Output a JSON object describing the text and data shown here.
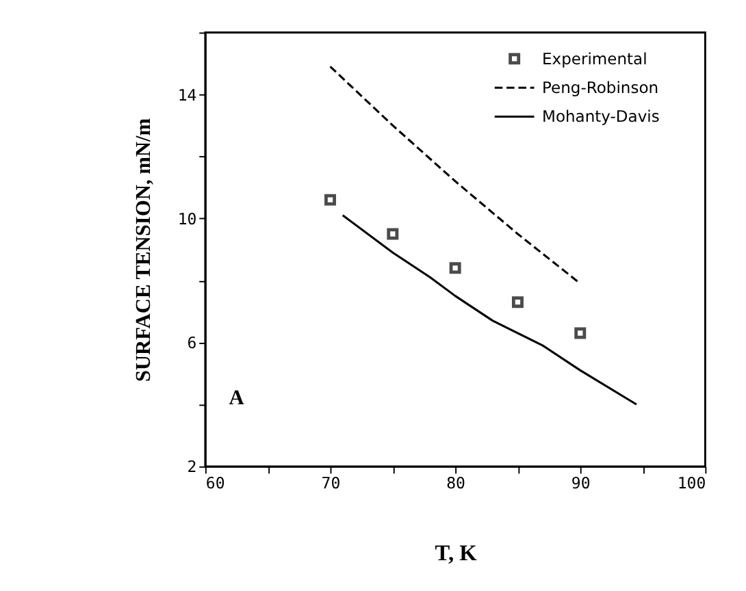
{
  "chart_data": {
    "type": "line",
    "xlabel": "T, K",
    "ylabel": "SURFACE TENSION, mN/m",
    "xlim": [
      60,
      100
    ],
    "ylim": [
      2,
      16
    ],
    "xticks": [
      60,
      {
        "value": 65,
        "label": null
      },
      70,
      {
        "value": 75,
        "label": null
      },
      80,
      {
        "value": 85,
        "label": null
      },
      90,
      {
        "value": 95,
        "label": null
      },
      100
    ],
    "yticks": [
      2,
      {
        "value": 4,
        "label": null
      },
      6,
      {
        "value": 8,
        "label": null
      },
      10,
      {
        "value": 12,
        "label": null
      },
      14,
      {
        "value": 16,
        "label": null
      }
    ],
    "grid": false,
    "legend": "top right",
    "annotations": [
      "A"
    ],
    "series": [
      {
        "name": "Experimental",
        "type": "scatter",
        "marker": "square",
        "color": "#000000",
        "x": [
          70,
          75,
          80,
          85,
          90
        ],
        "values": [
          10.6,
          9.5,
          8.4,
          7.3,
          6.3
        ]
      },
      {
        "name": "Peng-Robinson",
        "line_style": "dashed",
        "color": "#000000",
        "x": [
          70,
          75,
          80,
          85,
          90
        ],
        "values": [
          14.9,
          13.0,
          11.2,
          9.5,
          7.9
        ]
      },
      {
        "name": "Mohanty-Davis",
        "line_style": "solid",
        "color": "#000000",
        "x": [
          71,
          75,
          78,
          80,
          83,
          87,
          90,
          94.5
        ],
        "values": [
          10.1,
          8.9,
          8.1,
          7.5,
          6.7,
          5.9,
          5.1,
          4.0
        ]
      }
    ]
  }
}
